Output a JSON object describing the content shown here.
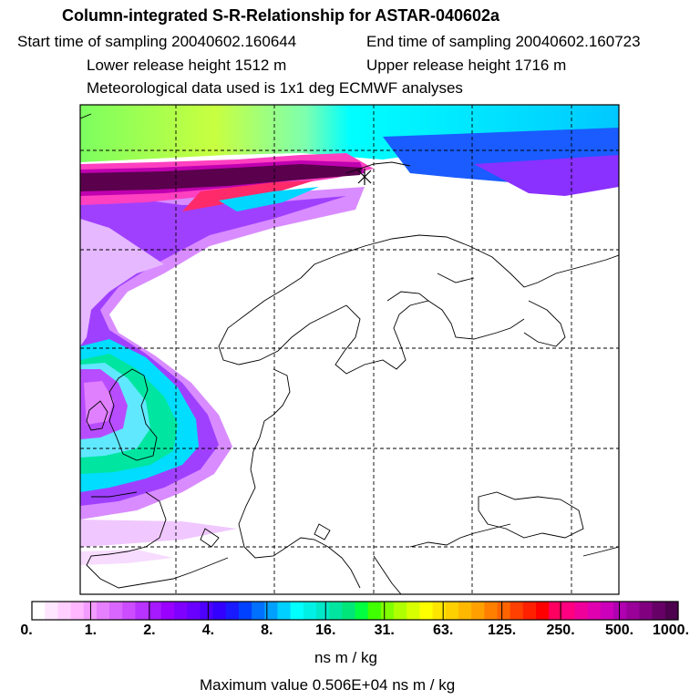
{
  "header": {
    "title": "Column-integrated S-R-Relationship for ASTAR-040602a",
    "start_label": "Start time of sampling 20040602.160644",
    "end_label": "End time of sampling 20040602.160723",
    "lower_label": "Lower release height 1512 m",
    "upper_label": "Upper release height 1716 m",
    "met_label": "Meteorological data used is 1x1 deg ECMWF analyses"
  },
  "colorbar": {
    "colors": [
      "#ffffff",
      "#ffe6ff",
      "#ffd0ff",
      "#ffb8ff",
      "#f39cff",
      "#e680ff",
      "#d966ff",
      "#cc4dff",
      "#b833ff",
      "#a61aff",
      "#9900ff",
      "#8000ff",
      "#6a00ff",
      "#4d00ff",
      "#3300ff",
      "#1a1aff",
      "#0040ff",
      "#0070ff",
      "#00a0ff",
      "#00d0ff",
      "#00ffff",
      "#00f0e6",
      "#00e6c8",
      "#00e6a0",
      "#00e678",
      "#00ff40",
      "#40ff00",
      "#80ff00",
      "#b0ff00",
      "#d8ff00",
      "#ffff00",
      "#ffe600",
      "#ffd000",
      "#ffb800",
      "#ffa000",
      "#ff8000",
      "#ff6400",
      "#ff4000",
      "#ff2000",
      "#ff0000",
      "#ff0060",
      "#ff0080",
      "#f0009a",
      "#e000b0",
      "#cc00bb",
      "#b000b0",
      "#9a0099",
      "#800080",
      "#660066",
      "#4d004d"
    ],
    "tick_labels": [
      "0.",
      "1.",
      "2.",
      "4.",
      "8.",
      "16.",
      "31.",
      "63.",
      "125.",
      "250.",
      "500.",
      "1000."
    ],
    "unit_label": "ns m / kg",
    "max_label": "Maximum value  0.506E+04 ns m / kg"
  }
}
